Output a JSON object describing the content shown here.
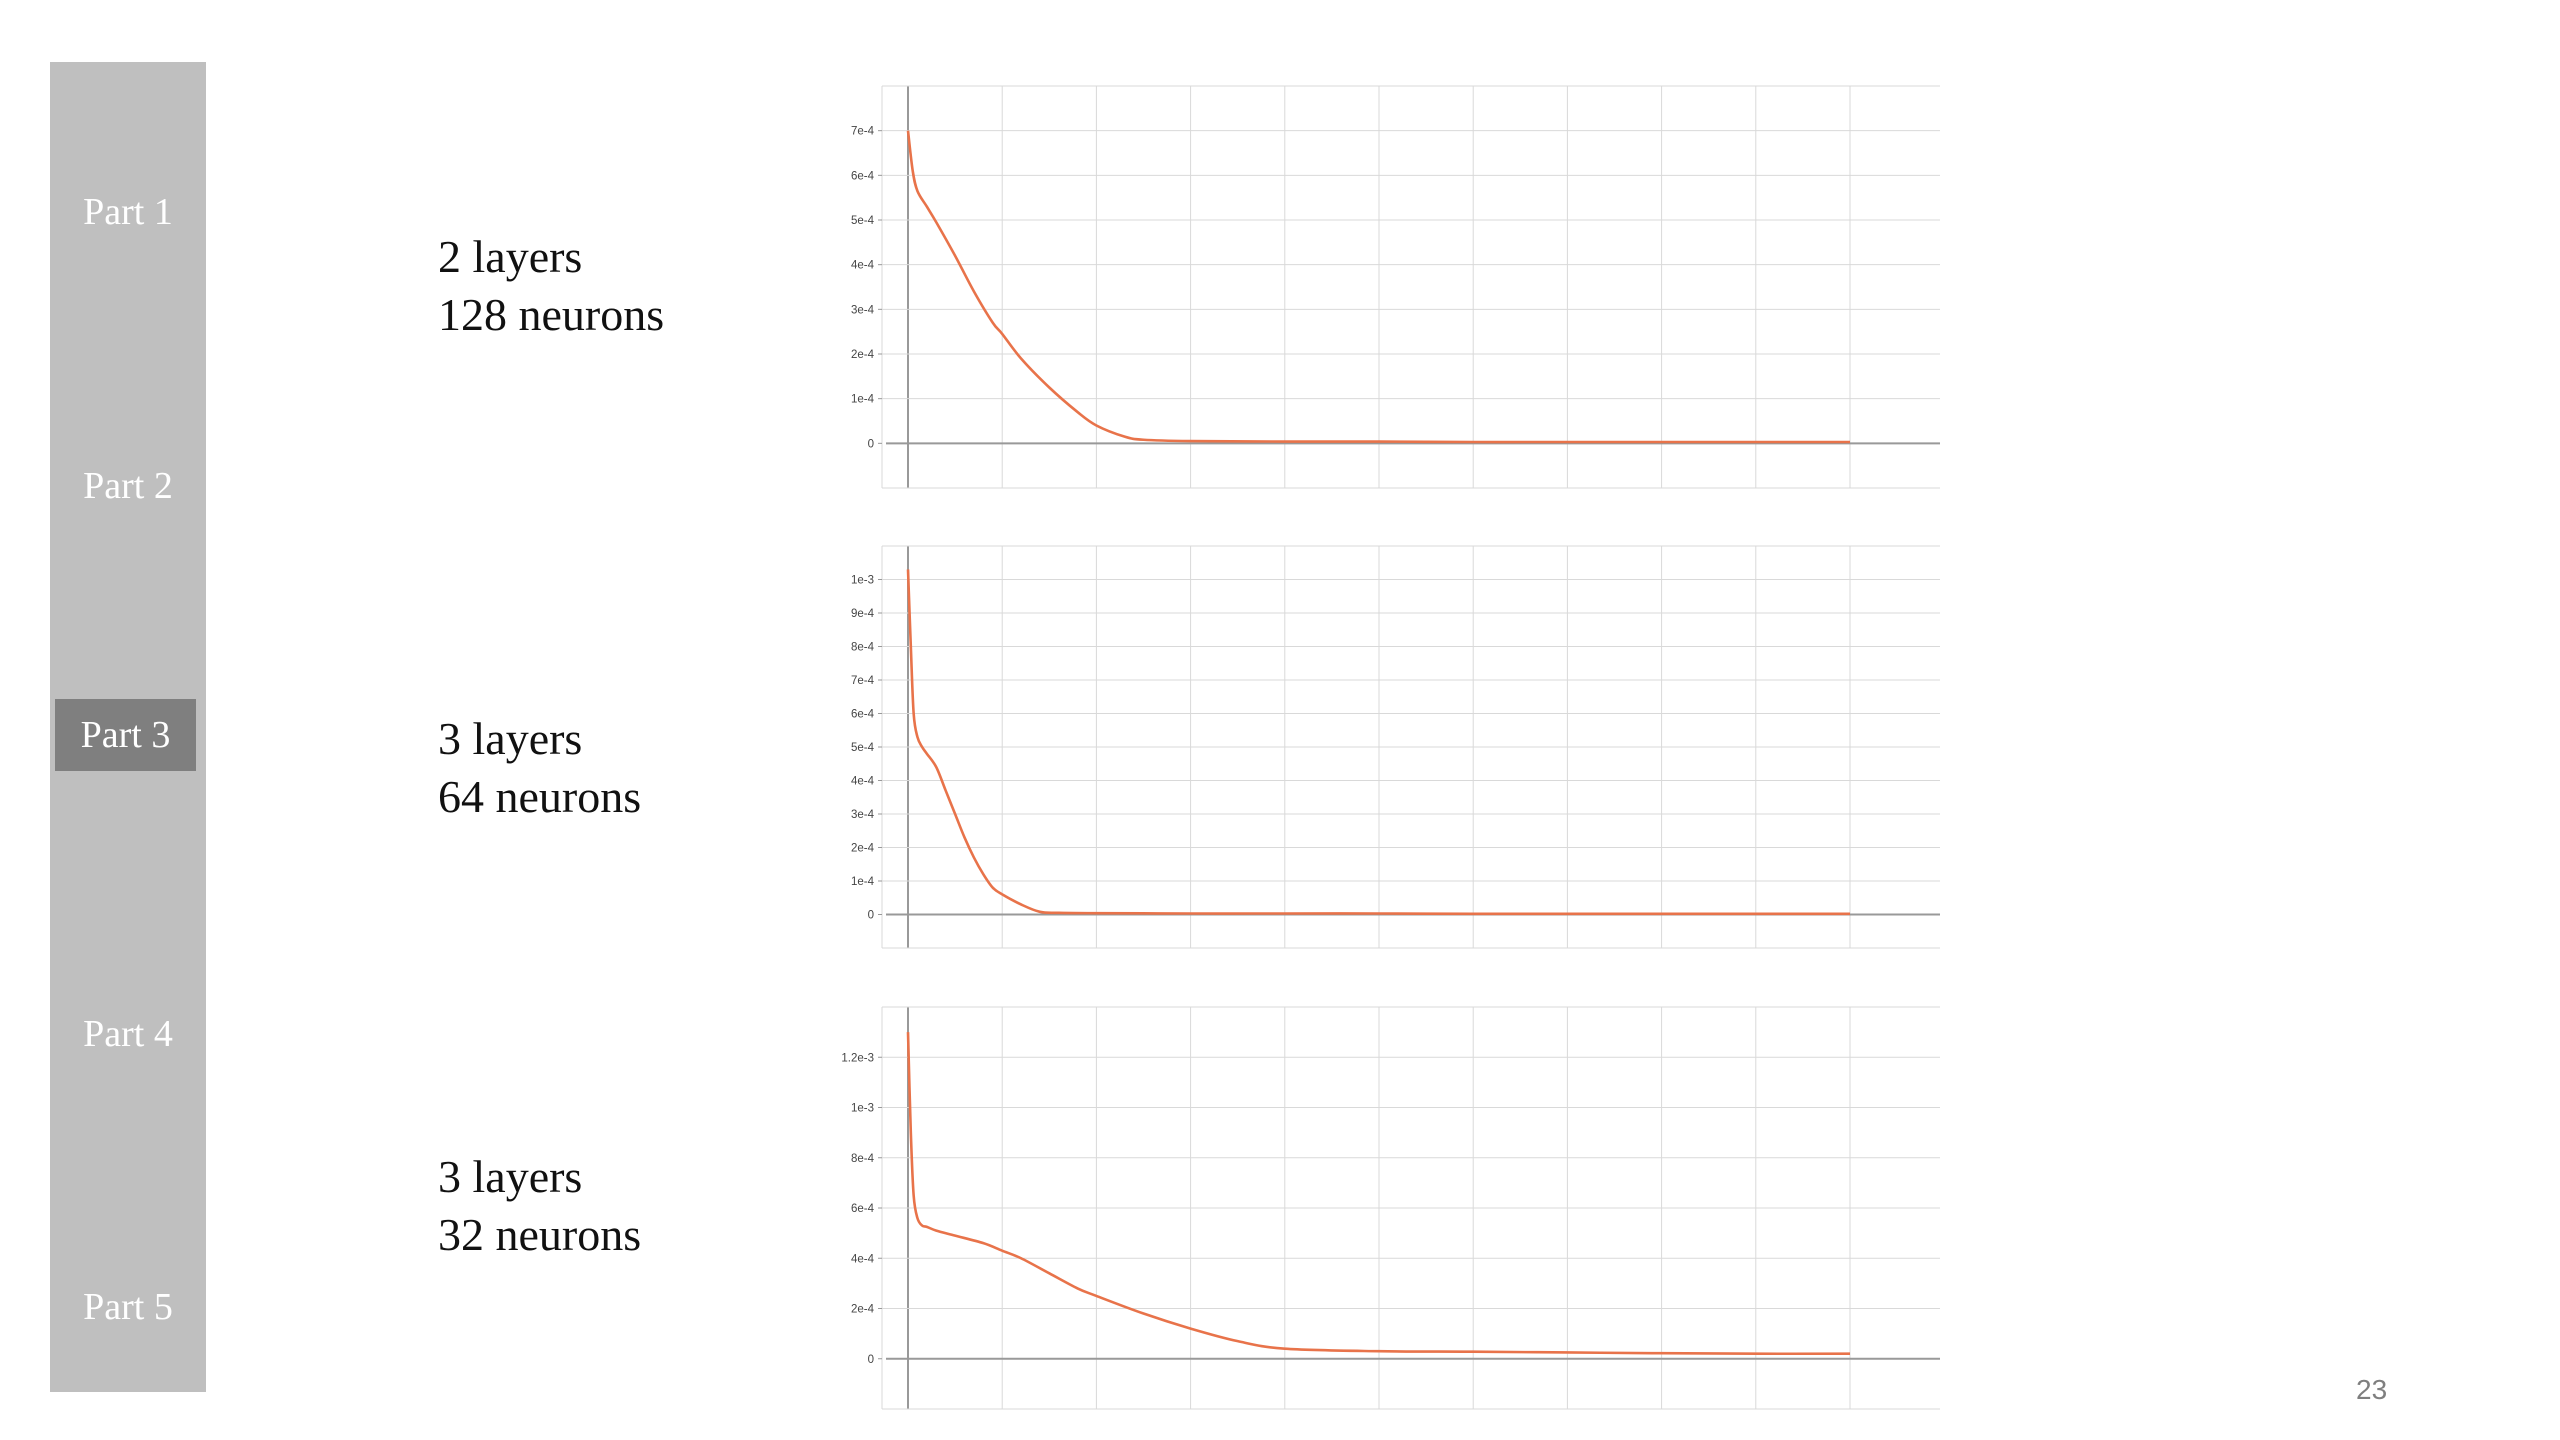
{
  "sidebar": {
    "items": [
      {
        "label": "Part 1",
        "active": false
      },
      {
        "label": "Part 2",
        "active": false
      },
      {
        "label": "Part 3",
        "active": true
      },
      {
        "label": "Part 4",
        "active": false
      },
      {
        "label": "Part 5",
        "active": false
      }
    ]
  },
  "configs": [
    {
      "layers": "2 layers",
      "neurons": "128 neurons"
    },
    {
      "layers": "3 layers",
      "neurons": "64 neurons"
    },
    {
      "layers": "3 layers",
      "neurons": "32 neurons"
    }
  ],
  "colors": {
    "line": "#e8734a",
    "grid": "#d9d9d9",
    "axis": "#999999",
    "sidebar": "#bfbfbf",
    "sidebar_active": "#7f7f7f"
  },
  "chart_data": [
    {
      "type": "line",
      "title": "",
      "xlabel": "",
      "ylabel": "",
      "ylim": [
        -0.0001,
        0.0008
      ],
      "yticks": [
        0,
        0.0001,
        0.0002,
        0.0003,
        0.0004,
        0.0005,
        0.0006,
        0.0007
      ],
      "ytick_labels": [
        "0",
        "1e-4",
        "2e-4",
        "3e-4",
        "4e-4",
        "5e-4",
        "6e-4",
        "7e-4"
      ],
      "grid": true,
      "series": [
        {
          "x": [
            0,
            0.05,
            0.1,
            0.2,
            0.3,
            0.5,
            0.7,
            0.9,
            1.0,
            1.2,
            1.5,
            1.8,
            2.0,
            2.3,
            2.5,
            3,
            4,
            5,
            6,
            7,
            8,
            9,
            10
          ],
          "y": [
            0.0007,
            0.00061,
            0.000565,
            0.00053,
            0.000495,
            0.00042,
            0.00034,
            0.00027,
            0.000245,
            0.00019,
            0.000125,
            7e-05,
            4e-05,
            1.5e-05,
            8e-06,
            5e-06,
            4e-06,
            4e-06,
            3e-06,
            3e-06,
            3e-06,
            3e-06,
            3e-06
          ]
        }
      ]
    },
    {
      "type": "line",
      "title": "",
      "xlabel": "",
      "ylabel": "",
      "ylim": [
        -0.0001,
        0.0011
      ],
      "yticks": [
        0,
        0.0001,
        0.0002,
        0.0003,
        0.0004,
        0.0005,
        0.0006,
        0.0007,
        0.0008,
        0.0009,
        0.001
      ],
      "ytick_labels": [
        "0",
        "1e-4",
        "2e-4",
        "3e-4",
        "4e-4",
        "5e-4",
        "6e-4",
        "7e-4",
        "8e-4",
        "9e-4",
        "1e-3"
      ],
      "grid": true,
      "series": [
        {
          "x": [
            0,
            0.03,
            0.06,
            0.1,
            0.15,
            0.2,
            0.3,
            0.4,
            0.5,
            0.6,
            0.7,
            0.8,
            0.9,
            1.0,
            1.2,
            1.4,
            1.6,
            2,
            3,
            4,
            5,
            6,
            7,
            8,
            9,
            10
          ],
          "y": [
            0.00103,
            0.0008,
            0.0006,
            0.00053,
            0.0005,
            0.00048,
            0.00044,
            0.00037,
            0.0003,
            0.00023,
            0.00017,
            0.00012,
            8e-05,
            6e-05,
            3e-05,
            8e-06,
            5e-06,
            4e-06,
            3e-06,
            3e-06,
            3e-06,
            2e-06,
            2e-06,
            2e-06,
            2e-06,
            2e-06
          ]
        }
      ]
    },
    {
      "type": "line",
      "title": "",
      "xlabel": "",
      "ylabel": "",
      "ylim": [
        -0.0002,
        0.0014
      ],
      "yticks": [
        0,
        0.0002,
        0.0004,
        0.0006,
        0.0008,
        0.001,
        0.0012
      ],
      "ytick_labels": [
        "0",
        "2e-4",
        "4e-4",
        "6e-4",
        "8e-4",
        "1e-3",
        "1.2e-3"
      ],
      "grid": true,
      "series": [
        {
          "x": [
            0,
            0.03,
            0.06,
            0.1,
            0.15,
            0.2,
            0.3,
            0.5,
            0.8,
            1.0,
            1.2,
            1.5,
            1.8,
            2.0,
            2.5,
            3,
            3.5,
            4,
            5,
            6,
            7,
            8,
            9,
            10
          ],
          "y": [
            0.0013,
            0.0009,
            0.00065,
            0.00056,
            0.00053,
            0.000525,
            0.00051,
            0.00049,
            0.00046,
            0.00043,
            0.0004,
            0.00034,
            0.00028,
            0.00025,
            0.00018,
            0.00012,
            7e-05,
            4e-05,
            3e-05,
            2.8e-05,
            2.5e-05,
            2.2e-05,
            2e-05,
            2e-05
          ]
        }
      ]
    }
  ],
  "page_number": "23"
}
